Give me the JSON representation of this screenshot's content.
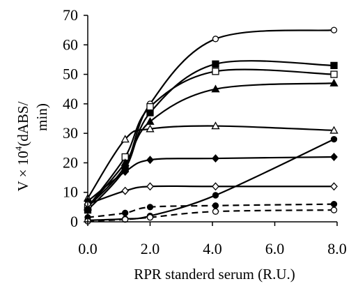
{
  "chart_data": {
    "type": "line",
    "title": "",
    "xlabel": "RPR standerd serum (R.U.)",
    "ylabel": {
      "prefix": "V × 10",
      "exponent": "4",
      "unit_line1": "(dABS/",
      "unit_line2": "min)"
    },
    "xlim": [
      0,
      8
    ],
    "ylim": [
      0,
      70
    ],
    "xticks": [
      "0.0",
      "2.0",
      "4.0",
      "6.0",
      "8.0"
    ],
    "xtick_values": [
      0,
      2,
      4,
      6,
      8
    ],
    "yticks": [
      "0",
      "10",
      "20",
      "30",
      "40",
      "50",
      "60",
      "70"
    ],
    "ytick_values": [
      0,
      10,
      20,
      30,
      40,
      50,
      60,
      70
    ],
    "grid": false,
    "legend": "none",
    "x": [
      0,
      1.2,
      2,
      4.1,
      7.9
    ],
    "series": [
      {
        "marker": "open-circle",
        "dash": "solid",
        "values": [
          5,
          19,
          40,
          62,
          65
        ]
      },
      {
        "marker": "filled-square",
        "dash": "solid",
        "values": [
          4,
          18,
          37,
          53.5,
          53
        ]
      },
      {
        "marker": "open-square",
        "dash": "solid",
        "values": [
          5,
          22,
          39,
          51,
          50
        ]
      },
      {
        "marker": "filled-triangle",
        "dash": "solid",
        "values": [
          5,
          20,
          34,
          45,
          47
        ]
      },
      {
        "marker": "open-triangle",
        "dash": "solid",
        "values": [
          8,
          28,
          31.5,
          32.5,
          31
        ]
      },
      {
        "marker": "filled-diamond",
        "dash": "solid",
        "values": [
          7,
          17,
          21,
          21.5,
          22
        ]
      },
      {
        "marker": "open-diamond",
        "dash": "solid",
        "values": [
          6,
          10.5,
          12,
          12,
          12
        ]
      },
      {
        "marker": "filled-circle",
        "dash": "solid",
        "values": [
          0.5,
          1,
          2,
          9,
          28
        ]
      },
      {
        "marker": "filled-circle",
        "dash": "dashed",
        "values": [
          1.5,
          3,
          5,
          5.5,
          6
        ]
      },
      {
        "marker": "open-circle",
        "dash": "dashed",
        "values": [
          0.2,
          0.8,
          1.5,
          3.5,
          4
        ]
      }
    ]
  }
}
